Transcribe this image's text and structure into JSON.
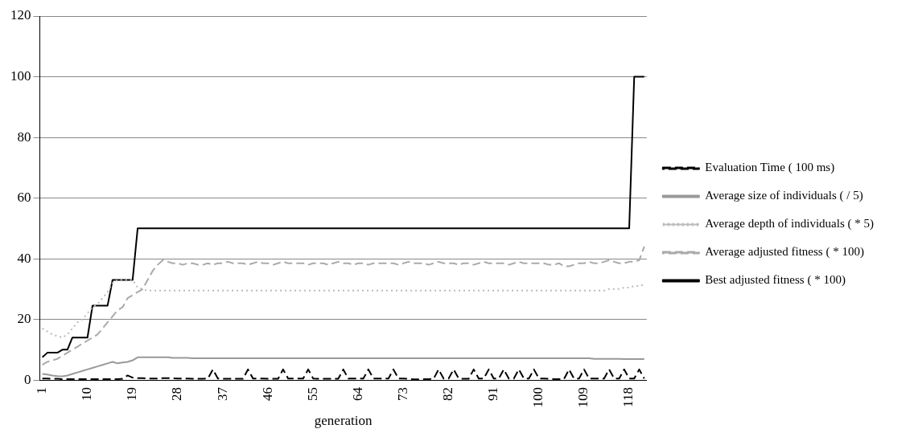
{
  "chart_data": {
    "type": "line",
    "xlabel": "generation",
    "categories": [
      "1",
      null,
      null,
      null,
      null,
      null,
      null,
      null,
      null,
      "10",
      null,
      null,
      null,
      null,
      null,
      null,
      null,
      null,
      "19",
      null,
      null,
      null,
      null,
      null,
      null,
      null,
      null,
      "28",
      null,
      null,
      null,
      null,
      null,
      null,
      null,
      null,
      "37",
      null,
      null,
      null,
      null,
      null,
      null,
      null,
      null,
      "46",
      null,
      null,
      null,
      null,
      null,
      null,
      null,
      null,
      "55",
      null,
      null,
      null,
      null,
      null,
      null,
      null,
      null,
      "64",
      null,
      null,
      null,
      null,
      null,
      null,
      null,
      null,
      "73",
      null,
      null,
      null,
      null,
      null,
      null,
      null,
      null,
      "82",
      null,
      null,
      null,
      null,
      null,
      null,
      null,
      null,
      "91",
      null,
      null,
      null,
      null,
      null,
      null,
      null,
      null,
      "100",
      null,
      null,
      null,
      null,
      null,
      null,
      null,
      null,
      "109",
      null,
      null,
      null,
      null,
      null,
      null,
      null,
      null,
      "118",
      null,
      null,
      null
    ],
    "ylim": [
      0,
      120
    ],
    "yticks": [
      0,
      20,
      40,
      60,
      80,
      100,
      120
    ],
    "grid": "y",
    "legend": "right",
    "marker": "none",
    "series": [
      {
        "name": "Evaluation Time ( 100 ms)",
        "color": "#000000",
        "line_style": "dashed",
        "values": [
          0.5,
          0.5,
          0.4,
          0.4,
          0.3,
          0.3,
          0.3,
          0.3,
          0.3,
          0.3,
          0.3,
          0.3,
          0.3,
          0.3,
          0.3,
          0.3,
          0.4,
          1.5,
          0.8,
          0.6,
          0.6,
          0.5,
          0.5,
          0.5,
          0.6,
          0.6,
          0.6,
          0.5,
          0.5,
          0.5,
          0.4,
          0.4,
          0.4,
          0.5,
          3.5,
          0.5,
          0.4,
          0.4,
          0.4,
          0.4,
          0.4,
          3.5,
          0.5,
          0.5,
          0.5,
          0.4,
          0.4,
          0.4,
          3.5,
          0.5,
          0.5,
          0.5,
          0.5,
          3.5,
          0.5,
          0.4,
          0.4,
          0.4,
          0.4,
          0.4,
          3.5,
          0.5,
          0.5,
          0.5,
          0.5,
          3.5,
          0.5,
          0.5,
          0.5,
          0.5,
          3.5,
          0.5,
          0.5,
          0.4,
          0.2,
          0.2,
          0.3,
          0.3,
          0.4,
          3.5,
          0.5,
          0.5,
          3.5,
          0.5,
          0.4,
          0.4,
          3.5,
          0.5,
          0.5,
          3.5,
          0.5,
          0.5,
          3.5,
          0.5,
          0.5,
          3.5,
          0.5,
          0.5,
          3.5,
          0.5,
          0.5,
          0.4,
          0.3,
          0.3,
          0.3,
          3.5,
          0.5,
          0.5,
          3.5,
          0.5,
          0.5,
          0.5,
          0.5,
          3.5,
          0.5,
          0.5,
          3.5,
          0.5,
          0.5,
          3.5,
          0.5
        ]
      },
      {
        "name": "Average size of individuals ( / 5)",
        "color": "#999999",
        "line_style": "solid",
        "values": [
          2,
          1.8,
          1.5,
          1.3,
          1.2,
          1.5,
          2,
          2.5,
          3,
          3.5,
          4,
          4.5,
          5,
          5.5,
          6,
          5.5,
          5.8,
          6,
          6.5,
          7.5,
          7.5,
          7.5,
          7.5,
          7.5,
          7.5,
          7.5,
          7.3,
          7.3,
          7.3,
          7.3,
          7.2,
          7.2,
          7.2,
          7.2,
          7.2,
          7.2,
          7.2,
          7.2,
          7.2,
          7.2,
          7.2,
          7.2,
          7.2,
          7.2,
          7.2,
          7.2,
          7.2,
          7.2,
          7.2,
          7.2,
          7.2,
          7.2,
          7.2,
          7.2,
          7.2,
          7.2,
          7.2,
          7.2,
          7.2,
          7.2,
          7.2,
          7.2,
          7.2,
          7.2,
          7.2,
          7.2,
          7.2,
          7.2,
          7.2,
          7.2,
          7.2,
          7.2,
          7.2,
          7.2,
          7.2,
          7.2,
          7.2,
          7.2,
          7.2,
          7.2,
          7.2,
          7.2,
          7.2,
          7.2,
          7.2,
          7.2,
          7.2,
          7.2,
          7.2,
          7.2,
          7.2,
          7.2,
          7.2,
          7.2,
          7.2,
          7.2,
          7.2,
          7.2,
          7.2,
          7.2,
          7.2,
          7.2,
          7.2,
          7.2,
          7.2,
          7.2,
          7.2,
          7.2,
          7.2,
          7.2,
          7,
          7,
          7,
          7,
          7,
          7,
          6.9,
          6.9,
          6.9,
          6.9,
          6.9
        ]
      },
      {
        "name": "Average depth of individuals ( * 5)",
        "color": "#bbbbbb",
        "line_style": "dotted",
        "values": [
          17,
          16,
          15,
          14.5,
          14,
          15,
          17,
          19,
          20,
          22,
          24,
          25,
          27,
          29,
          32,
          33,
          33,
          33,
          33,
          30.5,
          30,
          29.5,
          29.5,
          29.5,
          29.5,
          29.5,
          29.5,
          29.5,
          29.5,
          29.5,
          29.5,
          29.5,
          29.5,
          29.5,
          29.5,
          29.5,
          29.5,
          29.5,
          29.5,
          29.5,
          29.5,
          29.5,
          29.5,
          29.5,
          29.5,
          29.5,
          29.5,
          29.5,
          29.5,
          29.5,
          29.5,
          29.5,
          29.5,
          29.5,
          29.5,
          29.5,
          29.5,
          29.5,
          29.5,
          29.5,
          29.5,
          29.5,
          29.5,
          29.5,
          29.5,
          29.5,
          29.5,
          29.5,
          29.5,
          29.5,
          29.5,
          29.5,
          29.5,
          29.5,
          29.5,
          29.5,
          29.5,
          29.5,
          29.5,
          29.5,
          29.5,
          29.5,
          29.5,
          29.5,
          29.5,
          29.5,
          29.5,
          29.5,
          29.5,
          29.5,
          29.5,
          29.5,
          29.5,
          29.5,
          29.5,
          29.5,
          29.5,
          29.5,
          29.5,
          29.5,
          29.5,
          29.5,
          29.5,
          29.5,
          29.5,
          29.5,
          29.5,
          29.5,
          29.5,
          29.5,
          29.5,
          29.5,
          29.5,
          30,
          30,
          30,
          30.5,
          30.5,
          31,
          31,
          31.5
        ]
      },
      {
        "name": "Average adjusted fitness ( * 100)",
        "color": "#aaaaaa",
        "line_style": "dashed",
        "values": [
          5,
          6,
          6.5,
          7,
          8,
          9,
          10,
          11,
          12,
          13,
          14,
          15,
          17,
          19,
          21,
          23,
          24,
          27,
          28,
          29,
          30,
          33,
          36,
          38,
          39.5,
          39,
          38.5,
          38.5,
          38,
          38.5,
          38.5,
          38,
          38,
          38.5,
          38,
          38.5,
          38.5,
          39,
          38.5,
          38.5,
          38.5,
          38,
          38.5,
          39,
          38.5,
          38.5,
          38,
          38.5,
          39,
          38.5,
          38.5,
          38.5,
          38.5,
          38,
          38.5,
          38.5,
          38.5,
          38,
          38.5,
          39,
          38.5,
          38.5,
          38,
          38.5,
          38.5,
          38,
          38.5,
          38.5,
          38.5,
          38.5,
          38.5,
          38,
          38.5,
          39,
          38.5,
          38.5,
          38.5,
          38,
          38.5,
          39,
          38.5,
          38.5,
          38.5,
          38,
          38.5,
          38.5,
          38,
          38.5,
          39,
          38.5,
          38.5,
          38.5,
          38.5,
          38,
          38.5,
          39,
          38.5,
          38.5,
          38.5,
          38.5,
          38.5,
          38,
          38,
          38.5,
          37.5,
          37.5,
          38,
          38.5,
          38.5,
          39,
          38.5,
          38.5,
          39,
          39.5,
          39,
          38.5,
          38.5,
          39,
          39,
          39.5,
          44
        ]
      },
      {
        "name": "Best adjusted fitness ( * 100)",
        "color": "#000000",
        "line_style": "solid",
        "values": [
          7.5,
          9,
          9,
          9,
          10,
          10,
          14,
          14,
          14,
          14,
          24.5,
          24.5,
          24.5,
          24.5,
          33,
          33,
          33,
          33,
          33,
          50,
          50,
          50,
          50,
          50,
          50,
          50,
          50,
          50,
          50,
          50,
          50,
          50,
          50,
          50,
          50,
          50,
          50,
          50,
          50,
          50,
          50,
          50,
          50,
          50,
          50,
          50,
          50,
          50,
          50,
          50,
          50,
          50,
          50,
          50,
          50,
          50,
          50,
          50,
          50,
          50,
          50,
          50,
          50,
          50,
          50,
          50,
          50,
          50,
          50,
          50,
          50,
          50,
          50,
          50,
          50,
          50,
          50,
          50,
          50,
          50,
          50,
          50,
          50,
          50,
          50,
          50,
          50,
          50,
          50,
          50,
          50,
          50,
          50,
          50,
          50,
          50,
          50,
          50,
          50,
          50,
          50,
          50,
          50,
          50,
          50,
          50,
          50,
          50,
          50,
          50,
          50,
          50,
          50,
          50,
          50,
          50,
          50,
          50,
          100,
          100,
          100
        ]
      }
    ]
  }
}
